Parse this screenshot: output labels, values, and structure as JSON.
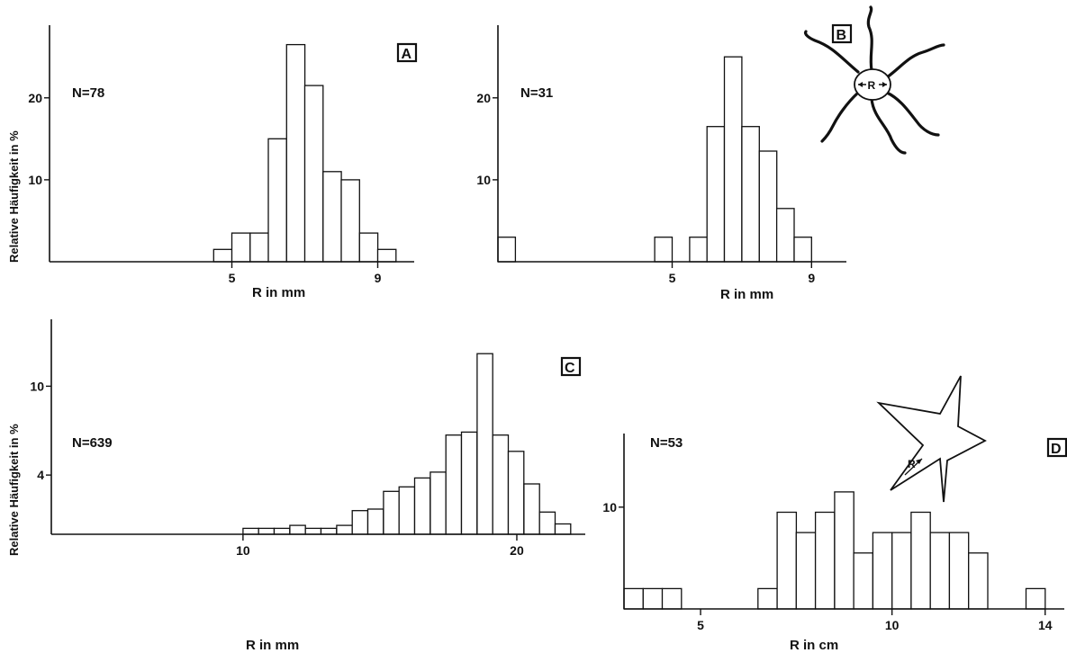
{
  "chart_data": [
    {
      "panel": "A",
      "type": "bar",
      "n_label": "N=78",
      "ylabel": "Relative Häufigkeit in %",
      "xlabel": "R in mm",
      "x_ticks": [
        5,
        9
      ],
      "y_ticks": [
        10,
        20
      ],
      "bin_width": 0.5,
      "bins_start": [
        4.5,
        5.0,
        5.5,
        6.0,
        6.5,
        7.0,
        7.5,
        8.0,
        8.5,
        9.0
      ],
      "values": [
        1.5,
        3.5,
        3.5,
        15,
        26.5,
        21.5,
        11,
        10,
        3.5,
        1.5
      ],
      "xlim": [
        0,
        10
      ],
      "ylim": [
        0,
        27
      ]
    },
    {
      "panel": "B",
      "type": "bar",
      "n_label": "N=31",
      "xlabel": "R in mm",
      "x_ticks": [
        5,
        9
      ],
      "y_ticks": [
        10,
        20
      ],
      "bin_width": 0.5,
      "bins_start": [
        0.0,
        4.5,
        5.5,
        6.0,
        6.5,
        7.0,
        7.5,
        8.0,
        8.5
      ],
      "values": [
        3,
        3,
        3,
        16.5,
        25,
        16.5,
        13.5,
        6.5,
        3
      ],
      "xlim": [
        0,
        10
      ],
      "ylim": [
        0,
        27
      ],
      "illustration_label": "R"
    },
    {
      "panel": "C",
      "type": "bar",
      "n_label": "N=639",
      "ylabel": "Relative Häufigkeit in %",
      "xlabel": "R in mm",
      "x_ticks": [
        10,
        20
      ],
      "y_ticks": [
        4,
        10
      ],
      "bin_width": 0.57,
      "bins_start": [
        10.0,
        10.57,
        11.14,
        11.71,
        12.28,
        12.85,
        13.42,
        13.99,
        14.56,
        15.13,
        15.7,
        16.27,
        16.84,
        17.41,
        17.98,
        18.55,
        19.12,
        19.69,
        20.26,
        20.83,
        21.4
      ],
      "values": [
        0.4,
        0.4,
        0.4,
        0.6,
        0.4,
        0.4,
        0.6,
        1.6,
        1.7,
        2.9,
        3.2,
        3.8,
        4.2,
        6.7,
        6.9,
        12.2,
        6.7,
        5.6,
        3.4,
        1.5,
        0.7
      ],
      "xlim": [
        3,
        22.5
      ],
      "ylim": [
        0,
        13
      ]
    },
    {
      "panel": "D",
      "type": "bar",
      "n_label": "N=53",
      "xlabel": "R in cm",
      "x_ticks": [
        5,
        10,
        14
      ],
      "y_ticks": [
        10
      ],
      "bin_width": 0.5,
      "bins_start": [
        3.0,
        3.5,
        4.0,
        6.5,
        7.0,
        7.5,
        8.0,
        8.5,
        9.0,
        9.5,
        10.0,
        10.5,
        11.0,
        11.5,
        12.0,
        13.5
      ],
      "values": [
        2,
        2,
        2,
        2,
        9.5,
        7.5,
        9.5,
        11.5,
        5.5,
        7.5,
        7.5,
        9.5,
        7.5,
        7.5,
        5.5,
        2
      ],
      "xlim": [
        3,
        14.5
      ],
      "ylim": [
        0,
        19
      ],
      "illustration_label": "R"
    }
  ]
}
